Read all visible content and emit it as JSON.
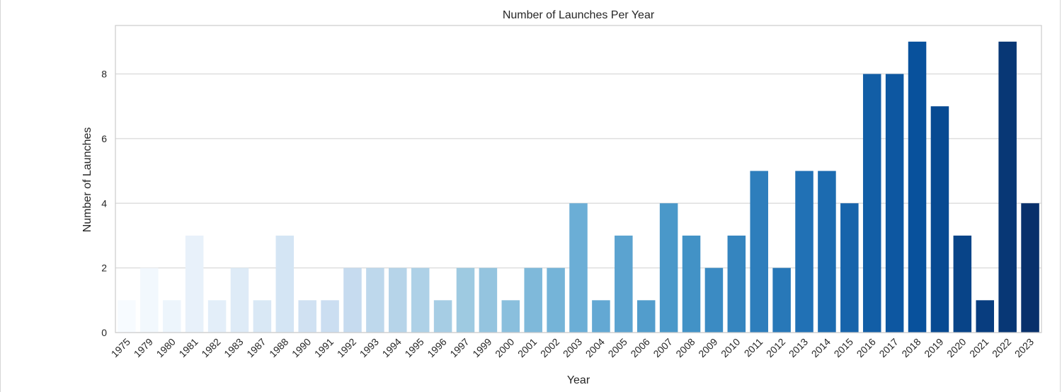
{
  "chart_data": {
    "type": "bar",
    "title": "Number of Launches Per Year",
    "xlabel": "Year",
    "ylabel": "Number of Launches",
    "categories": [
      "1975",
      "1979",
      "1980",
      "1981",
      "1982",
      "1983",
      "1987",
      "1988",
      "1990",
      "1991",
      "1992",
      "1993",
      "1994",
      "1995",
      "1996",
      "1997",
      "1999",
      "2000",
      "2001",
      "2002",
      "2003",
      "2004",
      "2005",
      "2006",
      "2007",
      "2008",
      "2009",
      "2010",
      "2011",
      "2012",
      "2013",
      "2014",
      "2015",
      "2016",
      "2017",
      "2018",
      "2019",
      "2020",
      "2021",
      "2022",
      "2023"
    ],
    "values": [
      1,
      2,
      1,
      3,
      1,
      2,
      1,
      3,
      1,
      1,
      2,
      2,
      2,
      2,
      1,
      2,
      2,
      1,
      2,
      2,
      4,
      1,
      3,
      1,
      4,
      3,
      2,
      3,
      5,
      2,
      5,
      5,
      4,
      8,
      8,
      9,
      7,
      3,
      1,
      9,
      4
    ],
    "ylim": [
      0,
      9.5
    ],
    "yticks": [
      0,
      2,
      4,
      6,
      8
    ],
    "grid": true,
    "palette": "Blues",
    "colors": {
      "light": "#f7fbff",
      "dark": "#08306b",
      "grid": "#d9d9d9",
      "frame": "#cccccc",
      "text": "#262626"
    }
  }
}
